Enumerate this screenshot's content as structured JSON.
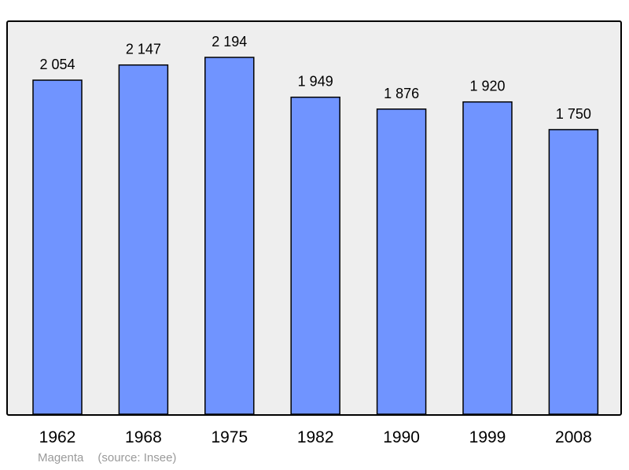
{
  "chart_data": {
    "type": "bar",
    "categories": [
      "1962",
      "1968",
      "1975",
      "1982",
      "1990",
      "1999",
      "2008"
    ],
    "values": [
      2054,
      2147,
      2194,
      1949,
      1876,
      1920,
      1750
    ],
    "value_labels": [
      "2 054",
      "2 147",
      "2 194",
      "1 949",
      "1 876",
      "1 920",
      "1 750"
    ],
    "ylim": [
      0,
      2194
    ],
    "grid": false,
    "legend": "none",
    "colors": {
      "bar_fill": "#7094ff",
      "bar_stroke": "#000000",
      "plot_background": "#eeeeee",
      "frame": "#000000"
    }
  },
  "caption": {
    "place": "Magenta",
    "source": "(source: Insee)"
  }
}
